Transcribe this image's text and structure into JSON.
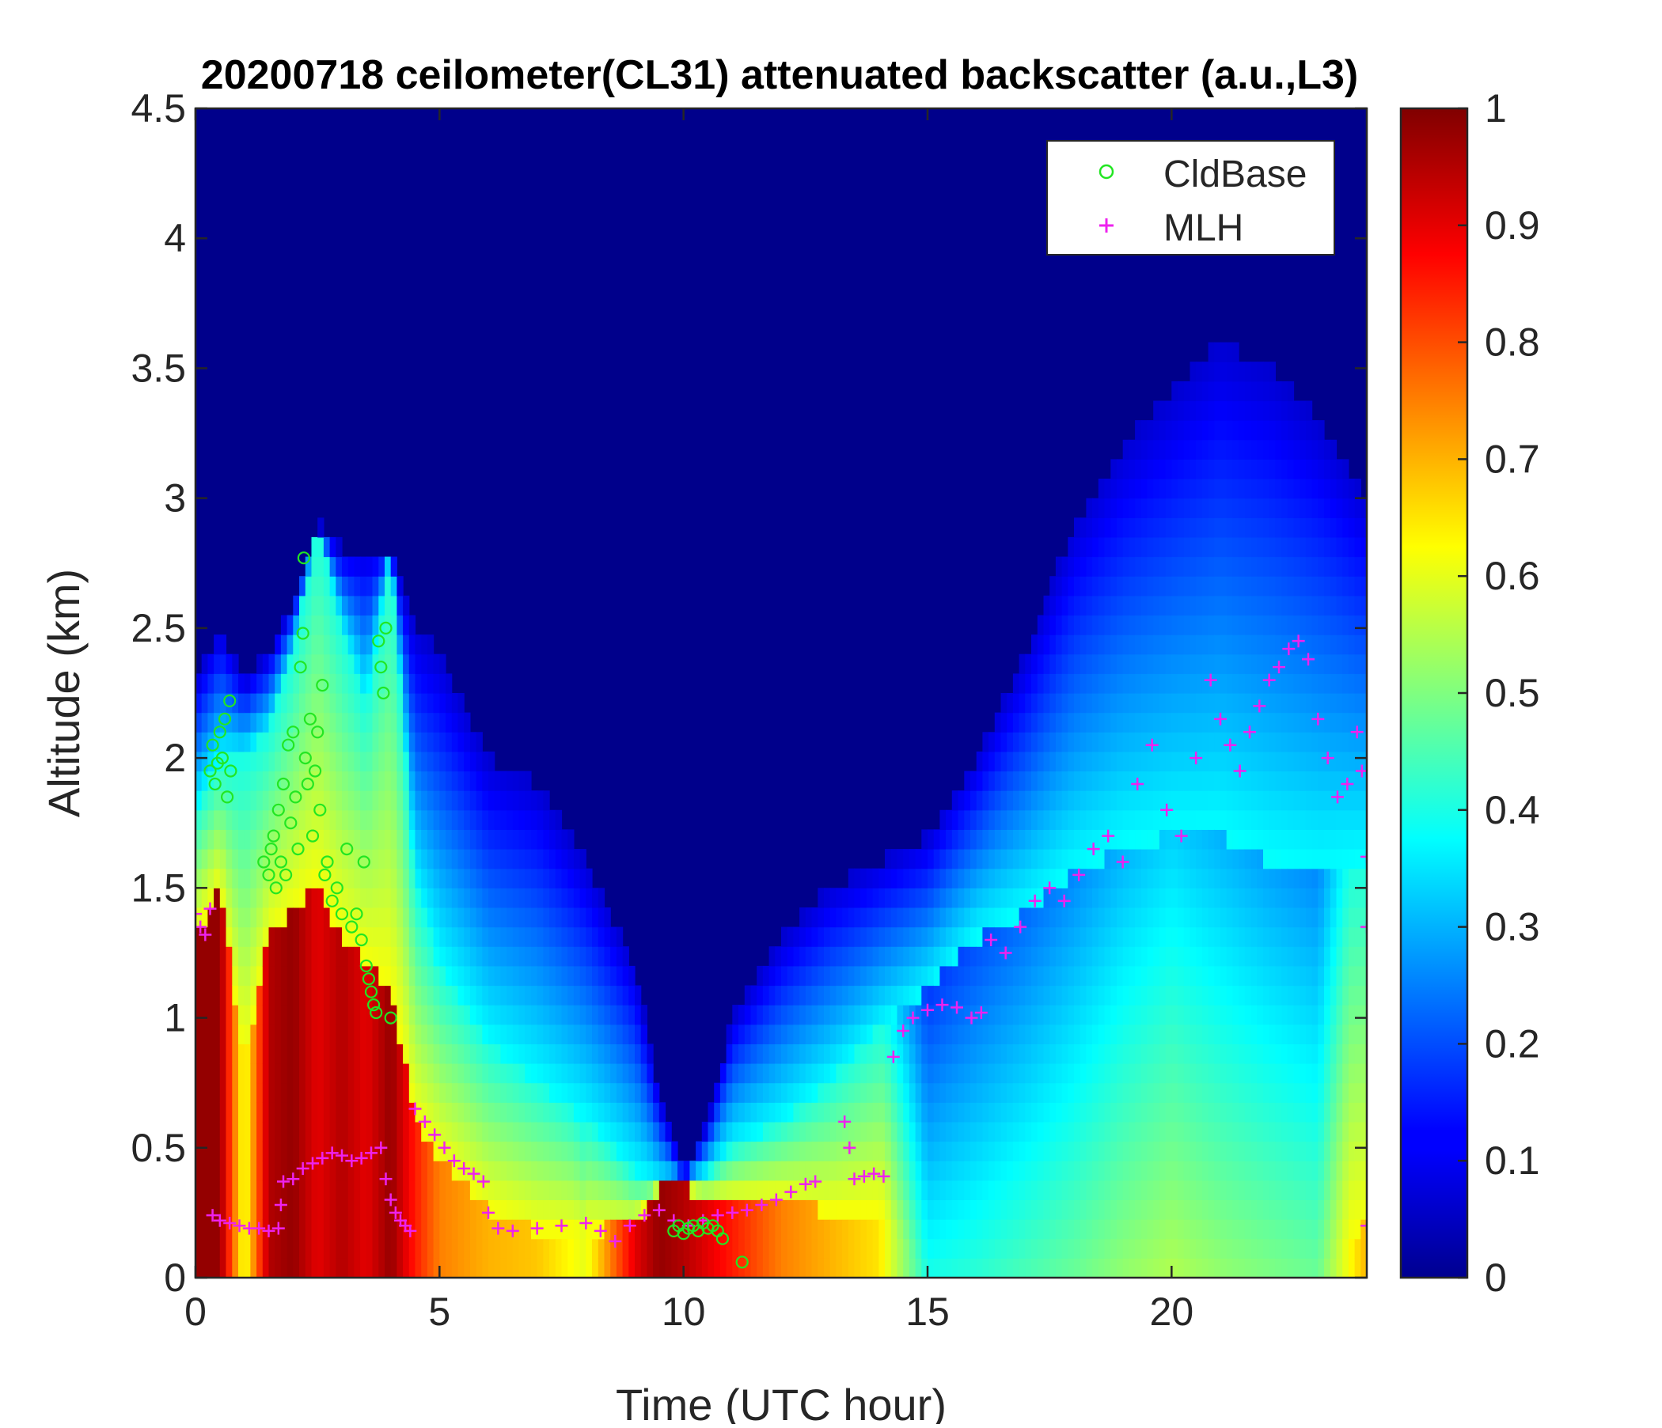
{
  "chart_data": {
    "type": "heatmap",
    "title": "20200718 ceilometer(CL31) attenuated backscatter (a.u.,L3)",
    "xlabel": "Time (UTC hour)",
    "ylabel": "Altitude (km)",
    "xlim": [
      0,
      24
    ],
    "ylim": [
      0,
      4.5
    ],
    "xticks": [
      "0",
      "5",
      "10",
      "15",
      "20"
    ],
    "xtick_values": [
      0,
      5,
      10,
      15,
      20
    ],
    "yticks": [
      "0",
      "0.5",
      "1",
      "1.5",
      "2",
      "2.5",
      "3",
      "3.5",
      "4",
      "4.5"
    ],
    "ytick_values": [
      0,
      0.5,
      1,
      1.5,
      2,
      2.5,
      3,
      3.5,
      4,
      4.5
    ],
    "colorbar": {
      "range": [
        0,
        1
      ],
      "colormap": "jet",
      "ticks": [
        "0",
        "0.1",
        "0.2",
        "0.3",
        "0.4",
        "0.5",
        "0.6",
        "0.7",
        "0.8",
        "0.9",
        "1"
      ],
      "tick_values": [
        0,
        0.1,
        0.2,
        0.3,
        0.4,
        0.5,
        0.6,
        0.7,
        0.8,
        0.9,
        1.0
      ]
    },
    "grid": false,
    "legend": {
      "position": "top-right",
      "entries": [
        {
          "label": "CldBase",
          "marker": "circle",
          "color": "#22e622"
        },
        {
          "label": "MLH",
          "marker": "plus",
          "color": "#ee22ee"
        }
      ]
    },
    "backscatter_profile": {
      "description_fields": [
        "time_h",
        "high_top_km",
        "mid_top_km",
        "low_top_km",
        "surface_value"
      ],
      "time_h": [
        0,
        0.5,
        1,
        1.5,
        2,
        2.5,
        3,
        3.5,
        4,
        4.5,
        5,
        6,
        7,
        8,
        9,
        9.5,
        10,
        10.5,
        11,
        12,
        13,
        14,
        15,
        16,
        17,
        18,
        19,
        20,
        21,
        22,
        23,
        24
      ],
      "high_top_km": [
        1.3,
        1.5,
        0.8,
        1.3,
        1.4,
        1.5,
        1.3,
        1.2,
        1.1,
        0.6,
        0.45,
        0.25,
        0.18,
        0.18,
        0.2,
        0.35,
        0.35,
        0.3,
        0.3,
        0.3,
        0.25,
        0.25,
        0.0,
        0.0,
        0.0,
        0.0,
        0.0,
        0.0,
        0.0,
        0.0,
        0.0,
        0.2
      ],
      "mid_top_km": [
        1.8,
        2.0,
        2.0,
        2.1,
        2.4,
        2.9,
        2.5,
        2.2,
        2.8,
        1.5,
        1.2,
        0.9,
        0.75,
        0.6,
        0.4,
        0.35,
        0.35,
        0.4,
        0.5,
        0.6,
        0.75,
        0.95,
        1.1,
        1.3,
        1.4,
        1.55,
        1.65,
        1.7,
        1.7,
        1.6,
        1.55,
        1.6
      ],
      "low_top_km": [
        2.3,
        2.5,
        2.3,
        2.4,
        2.6,
        2.9,
        2.8,
        2.8,
        2.8,
        2.5,
        2.4,
        2.0,
        1.9,
        1.6,
        1.2,
        0.7,
        0.4,
        0.6,
        1.0,
        1.3,
        1.5,
        1.6,
        1.7,
        2.0,
        2.4,
        2.9,
        3.2,
        3.4,
        3.6,
        3.5,
        3.3,
        3.0
      ],
      "surface_value": [
        0.98,
        0.98,
        0.6,
        0.95,
        0.98,
        0.9,
        0.95,
        0.9,
        0.98,
        0.85,
        0.75,
        0.7,
        0.68,
        0.6,
        0.9,
        0.98,
        0.95,
        0.9,
        0.85,
        0.75,
        0.7,
        0.65,
        0.4,
        0.42,
        0.45,
        0.48,
        0.52,
        0.55,
        0.52,
        0.5,
        0.48,
        0.7
      ]
    },
    "series": [
      {
        "name": "CldBase",
        "marker": "circle",
        "points": [
          [
            0.3,
            1.95
          ],
          [
            0.35,
            2.05
          ],
          [
            0.4,
            1.9
          ],
          [
            0.45,
            1.98
          ],
          [
            0.5,
            2.1
          ],
          [
            0.55,
            2.0
          ],
          [
            0.6,
            2.15
          ],
          [
            0.65,
            1.85
          ],
          [
            0.7,
            2.22
          ],
          [
            0.72,
            1.95
          ],
          [
            1.4,
            1.6
          ],
          [
            1.5,
            1.55
          ],
          [
            1.55,
            1.65
          ],
          [
            1.6,
            1.7
          ],
          [
            1.65,
            1.5
          ],
          [
            1.7,
            1.8
          ],
          [
            1.75,
            1.6
          ],
          [
            1.8,
            1.9
          ],
          [
            1.85,
            1.55
          ],
          [
            1.9,
            2.05
          ],
          [
            1.95,
            1.75
          ],
          [
            2.0,
            2.1
          ],
          [
            2.05,
            1.85
          ],
          [
            2.1,
            1.65
          ],
          [
            2.15,
            2.35
          ],
          [
            2.2,
            2.48
          ],
          [
            2.22,
            2.77
          ],
          [
            2.25,
            2.0
          ],
          [
            2.3,
            1.9
          ],
          [
            2.35,
            2.15
          ],
          [
            2.4,
            1.7
          ],
          [
            2.45,
            1.95
          ],
          [
            2.5,
            2.1
          ],
          [
            2.55,
            1.8
          ],
          [
            2.6,
            2.28
          ],
          [
            2.65,
            1.55
          ],
          [
            2.7,
            1.6
          ],
          [
            2.8,
            1.45
          ],
          [
            2.9,
            1.5
          ],
          [
            3.0,
            1.4
          ],
          [
            3.1,
            1.65
          ],
          [
            3.2,
            1.35
          ],
          [
            3.3,
            1.4
          ],
          [
            3.4,
            1.3
          ],
          [
            3.45,
            1.6
          ],
          [
            3.5,
            1.2
          ],
          [
            3.55,
            1.15
          ],
          [
            3.6,
            1.1
          ],
          [
            3.65,
            1.05
          ],
          [
            3.7,
            1.02
          ],
          [
            3.75,
            2.45
          ],
          [
            3.8,
            2.35
          ],
          [
            3.85,
            2.25
          ],
          [
            3.9,
            2.5
          ],
          [
            4.0,
            1.0
          ],
          [
            9.8,
            0.18
          ],
          [
            9.9,
            0.2
          ],
          [
            10.0,
            0.17
          ],
          [
            10.1,
            0.19
          ],
          [
            10.2,
            0.2
          ],
          [
            10.3,
            0.18
          ],
          [
            10.4,
            0.21
          ],
          [
            10.5,
            0.19
          ],
          [
            10.6,
            0.2
          ],
          [
            10.7,
            0.18
          ],
          [
            10.8,
            0.15
          ],
          [
            11.2,
            0.06
          ]
        ]
      },
      {
        "name": "MLH",
        "marker": "plus",
        "points": [
          [
            0.0,
            1.4
          ],
          [
            0.1,
            1.35
          ],
          [
            0.2,
            1.32
          ],
          [
            0.3,
            1.42
          ],
          [
            0.35,
            0.24
          ],
          [
            0.5,
            0.22
          ],
          [
            0.7,
            0.21
          ],
          [
            0.9,
            0.2
          ],
          [
            1.1,
            0.19
          ],
          [
            1.3,
            0.19
          ],
          [
            1.5,
            0.18
          ],
          [
            1.7,
            0.19
          ],
          [
            1.75,
            0.28
          ],
          [
            1.8,
            0.37
          ],
          [
            2.0,
            0.38
          ],
          [
            2.2,
            0.42
          ],
          [
            2.4,
            0.44
          ],
          [
            2.6,
            0.46
          ],
          [
            2.8,
            0.48
          ],
          [
            3.0,
            0.47
          ],
          [
            3.2,
            0.45
          ],
          [
            3.4,
            0.46
          ],
          [
            3.6,
            0.48
          ],
          [
            3.8,
            0.5
          ],
          [
            3.9,
            0.38
          ],
          [
            4.0,
            0.3
          ],
          [
            4.1,
            0.25
          ],
          [
            4.2,
            0.22
          ],
          [
            4.3,
            0.2
          ],
          [
            4.4,
            0.18
          ],
          [
            4.5,
            0.65
          ],
          [
            4.7,
            0.6
          ],
          [
            4.9,
            0.55
          ],
          [
            5.1,
            0.5
          ],
          [
            5.3,
            0.45
          ],
          [
            5.5,
            0.42
          ],
          [
            5.7,
            0.4
          ],
          [
            5.9,
            0.37
          ],
          [
            6.0,
            0.25
          ],
          [
            6.2,
            0.19
          ],
          [
            6.5,
            0.18
          ],
          [
            7.0,
            0.19
          ],
          [
            7.5,
            0.2
          ],
          [
            8.0,
            0.21
          ],
          [
            8.3,
            0.18
          ],
          [
            8.6,
            0.14
          ],
          [
            8.9,
            0.2
          ],
          [
            9.2,
            0.24
          ],
          [
            9.5,
            0.26
          ],
          [
            9.8,
            0.22
          ],
          [
            10.1,
            0.2
          ],
          [
            10.4,
            0.22
          ],
          [
            10.7,
            0.24
          ],
          [
            11.0,
            0.25
          ],
          [
            11.3,
            0.26
          ],
          [
            11.6,
            0.28
          ],
          [
            11.9,
            0.3
          ],
          [
            12.2,
            0.33
          ],
          [
            12.5,
            0.36
          ],
          [
            12.7,
            0.37
          ],
          [
            13.3,
            0.6
          ],
          [
            13.4,
            0.5
          ],
          [
            13.5,
            0.38
          ],
          [
            13.7,
            0.39
          ],
          [
            13.9,
            0.4
          ],
          [
            14.1,
            0.39
          ],
          [
            14.3,
            0.85
          ],
          [
            14.5,
            0.95
          ],
          [
            14.7,
            1.0
          ],
          [
            15.0,
            1.03
          ],
          [
            15.3,
            1.05
          ],
          [
            15.6,
            1.04
          ],
          [
            15.9,
            1.0
          ],
          [
            16.1,
            1.02
          ],
          [
            16.3,
            1.3
          ],
          [
            16.6,
            1.25
          ],
          [
            16.9,
            1.35
          ],
          [
            17.2,
            1.45
          ],
          [
            17.5,
            1.5
          ],
          [
            17.8,
            1.45
          ],
          [
            18.1,
            1.55
          ],
          [
            18.4,
            1.65
          ],
          [
            18.7,
            1.7
          ],
          [
            19.0,
            1.6
          ],
          [
            19.3,
            1.9
          ],
          [
            19.6,
            2.05
          ],
          [
            19.9,
            1.8
          ],
          [
            20.2,
            1.7
          ],
          [
            20.5,
            2.0
          ],
          [
            20.8,
            2.3
          ],
          [
            21.0,
            2.15
          ],
          [
            21.2,
            2.05
          ],
          [
            21.4,
            1.95
          ],
          [
            21.6,
            2.1
          ],
          [
            21.8,
            2.2
          ],
          [
            22.0,
            2.3
          ],
          [
            22.2,
            2.35
          ],
          [
            22.4,
            2.42
          ],
          [
            22.6,
            2.45
          ],
          [
            22.8,
            2.38
          ],
          [
            23.0,
            2.15
          ],
          [
            23.2,
            2.0
          ],
          [
            23.4,
            1.85
          ],
          [
            23.6,
            1.9
          ],
          [
            23.8,
            2.1
          ],
          [
            23.9,
            1.95
          ],
          [
            24.0,
            1.35
          ],
          [
            24.0,
            1.62
          ],
          [
            24.0,
            0.2
          ]
        ]
      }
    ]
  }
}
